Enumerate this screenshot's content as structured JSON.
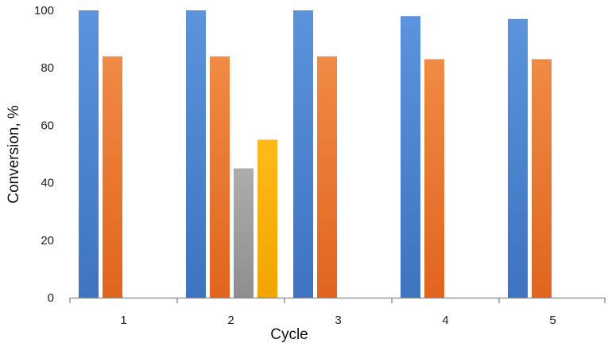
{
  "chart_data": {
    "type": "bar",
    "title": "",
    "xlabel": "Cycle",
    "ylabel": "Conversion, %",
    "ylim": [
      0,
      100
    ],
    "yticks": [
      0,
      20,
      40,
      60,
      80,
      100
    ],
    "grid": false,
    "legend": "none",
    "categories": [
      "1",
      "2",
      "3",
      "4",
      "5"
    ],
    "series": [
      {
        "color": "#4F86D2",
        "values": [
          100,
          100,
          100,
          98,
          97
        ]
      },
      {
        "color": "#ED7D31",
        "values": [
          84,
          84,
          84,
          83,
          83
        ]
      },
      {
        "color": "#A5A5A5",
        "values": [
          null,
          45,
          null,
          null,
          null
        ]
      },
      {
        "color": "#FFB000",
        "values": [
          null,
          55,
          null,
          null,
          null
        ]
      }
    ]
  }
}
